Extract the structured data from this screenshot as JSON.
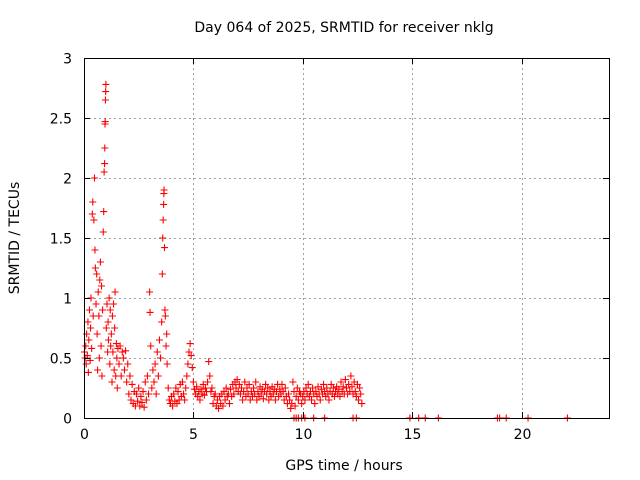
{
  "chart_data": {
    "type": "scatter",
    "title": "Day 064 of 2025, SRMTID for receiver nklg",
    "xlabel": "GPS time / hours",
    "ylabel": "SRMTID / TECUs",
    "xlim": [
      0,
      24
    ],
    "ylim": [
      0,
      3
    ],
    "grid": true,
    "marker": "+",
    "colors": {
      "series": "#ff0000",
      "axis": "#000000",
      "grid": "#a0a0a0"
    },
    "x_ticks": [
      {
        "value": 0,
        "label": "0"
      },
      {
        "value": 5,
        "label": "5"
      },
      {
        "value": 10,
        "label": "10"
      },
      {
        "value": 15,
        "label": "15"
      },
      {
        "value": 20,
        "label": "20"
      }
    ],
    "y_ticks": [
      {
        "value": 0,
        "label": "0"
      },
      {
        "value": 0.5,
        "label": "0.5"
      },
      {
        "value": 1,
        "label": "1"
      },
      {
        "value": 1.5,
        "label": "1.5"
      },
      {
        "value": 2,
        "label": "2"
      },
      {
        "value": 2.5,
        "label": "2.5"
      },
      {
        "value": 3,
        "label": "3"
      }
    ],
    "series": [
      {
        "name": "SRMTID",
        "points": [
          [
            0.02,
            0.55
          ],
          [
            0.05,
            0.5
          ],
          [
            0.08,
            0.6
          ],
          [
            0.1,
            0.45
          ],
          [
            0.12,
            0.7
          ],
          [
            0.15,
            0.52
          ],
          [
            0.18,
            0.8
          ],
          [
            0.2,
            0.38
          ],
          [
            0.22,
            0.65
          ],
          [
            0.25,
            0.9
          ],
          [
            0.28,
            0.48
          ],
          [
            0.3,
            0.75
          ],
          [
            0.32,
            1.0
          ],
          [
            0.35,
            0.58
          ],
          [
            0.38,
            1.7
          ],
          [
            0.4,
            1.8
          ],
          [
            0.42,
            0.85
          ],
          [
            0.45,
            1.65
          ],
          [
            0.48,
            2.0
          ],
          [
            0.5,
            1.4
          ],
          [
            0.52,
            1.25
          ],
          [
            0.55,
            0.95
          ],
          [
            0.58,
            1.2
          ],
          [
            0.6,
            0.7
          ],
          [
            0.62,
            0.4
          ],
          [
            0.65,
            1.05
          ],
          [
            0.68,
            0.85
          ],
          [
            0.7,
            0.5
          ],
          [
            0.72,
            1.15
          ],
          [
            0.75,
            1.3
          ],
          [
            0.78,
            0.6
          ],
          [
            0.8,
            1.1
          ],
          [
            0.82,
            0.35
          ],
          [
            0.85,
            0.9
          ],
          [
            0.88,
            1.55
          ],
          [
            0.9,
            1.72
          ],
          [
            0.92,
            2.05
          ],
          [
            0.94,
            2.12
          ],
          [
            0.95,
            2.25
          ],
          [
            0.96,
            2.45
          ],
          [
            0.97,
            2.47
          ],
          [
            0.98,
            2.65
          ],
          [
            0.99,
            2.72
          ],
          [
            1.0,
            2.78
          ],
          [
            1.02,
            0.75
          ],
          [
            1.05,
            0.95
          ],
          [
            1.08,
            0.55
          ],
          [
            1.1,
            0.8
          ],
          [
            1.12,
            0.65
          ],
          [
            1.15,
            1.0
          ],
          [
            1.18,
            0.45
          ],
          [
            1.2,
            0.9
          ],
          [
            1.22,
            0.6
          ],
          [
            1.25,
            0.7
          ],
          [
            1.28,
            0.3
          ],
          [
            1.3,
            0.85
          ],
          [
            1.32,
            0.55
          ],
          [
            1.35,
            0.95
          ],
          [
            1.38,
            0.4
          ],
          [
            1.4,
            0.75
          ],
          [
            1.42,
            1.05
          ],
          [
            1.45,
            0.35
          ],
          [
            1.48,
            0.62
          ],
          [
            1.5,
            0.5
          ],
          [
            1.52,
            0.25
          ],
          [
            1.55,
            0.58
          ],
          [
            1.6,
            0.45
          ],
          [
            1.65,
            0.6
          ],
          [
            1.7,
            0.35
          ],
          [
            1.75,
            0.55
          ],
          [
            1.8,
            0.5
          ],
          [
            1.85,
            0.4
          ],
          [
            1.9,
            0.56
          ],
          [
            1.95,
            0.3
          ],
          [
            2.0,
            0.45
          ],
          [
            2.05,
            0.2
          ],
          [
            2.1,
            0.35
          ],
          [
            2.15,
            0.15
          ],
          [
            2.2,
            0.28
          ],
          [
            2.25,
            0.12
          ],
          [
            2.3,
            0.22
          ],
          [
            2.35,
            0.1
          ],
          [
            2.4,
            0.2
          ],
          [
            2.45,
            0.14
          ],
          [
            2.5,
            0.25
          ],
          [
            2.55,
            0.1
          ],
          [
            2.6,
            0.18
          ],
          [
            2.65,
            0.13
          ],
          [
            2.7,
            0.22
          ],
          [
            2.75,
            0.09
          ],
          [
            2.8,
            0.3
          ],
          [
            2.85,
            0.15
          ],
          [
            2.9,
            0.35
          ],
          [
            2.95,
            0.2
          ],
          [
            3.0,
            1.05
          ],
          [
            3.02,
            0.88
          ],
          [
            3.05,
            0.6
          ],
          [
            3.1,
            0.25
          ],
          [
            3.15,
            0.4
          ],
          [
            3.2,
            0.3
          ],
          [
            3.25,
            0.45
          ],
          [
            3.3,
            0.2
          ],
          [
            3.35,
            0.55
          ],
          [
            3.4,
            0.35
          ],
          [
            3.45,
            0.65
          ],
          [
            3.5,
            0.5
          ],
          [
            3.55,
            0.8
          ],
          [
            3.58,
            1.2
          ],
          [
            3.6,
            1.5
          ],
          [
            3.62,
            1.65
          ],
          [
            3.64,
            1.78
          ],
          [
            3.65,
            1.87
          ],
          [
            3.66,
            1.9
          ],
          [
            3.68,
            1.42
          ],
          [
            3.7,
            0.9
          ],
          [
            3.72,
            0.85
          ],
          [
            3.75,
            0.6
          ],
          [
            3.78,
            0.7
          ],
          [
            3.8,
            0.45
          ],
          [
            3.85,
            0.25
          ],
          [
            3.9,
            0.15
          ],
          [
            3.95,
            0.12
          ],
          [
            4.0,
            0.18
          ],
          [
            4.05,
            0.1
          ],
          [
            4.1,
            0.2
          ],
          [
            4.15,
            0.14
          ],
          [
            4.2,
            0.25
          ],
          [
            4.25,
            0.12
          ],
          [
            4.3,
            0.22
          ],
          [
            4.35,
            0.15
          ],
          [
            4.4,
            0.28
          ],
          [
            4.45,
            0.18
          ],
          [
            4.5,
            0.3
          ],
          [
            4.55,
            0.2
          ],
          [
            4.6,
            0.15
          ],
          [
            4.65,
            0.25
          ],
          [
            4.7,
            0.35
          ],
          [
            4.75,
            0.45
          ],
          [
            4.8,
            0.55
          ],
          [
            4.85,
            0.62
          ],
          [
            4.9,
            0.52
          ],
          [
            4.95,
            0.42
          ],
          [
            5.0,
            0.3
          ],
          [
            5.05,
            0.24
          ],
          [
            5.1,
            0.2
          ],
          [
            5.15,
            0.26
          ],
          [
            5.2,
            0.18
          ],
          [
            5.25,
            0.22
          ],
          [
            5.3,
            0.15
          ],
          [
            5.35,
            0.24
          ],
          [
            5.4,
            0.2
          ],
          [
            5.45,
            0.28
          ],
          [
            5.5,
            0.19
          ],
          [
            5.55,
            0.25
          ],
          [
            5.6,
            0.22
          ],
          [
            5.65,
            0.3
          ],
          [
            5.7,
            0.47
          ],
          [
            5.75,
            0.35
          ],
          [
            5.8,
            0.22
          ],
          [
            5.85,
            0.25
          ],
          [
            5.9,
            0.12
          ],
          [
            5.95,
            0.18
          ],
          [
            6.0,
            0.2
          ],
          [
            6.05,
            0.1
          ],
          [
            6.1,
            0.15
          ],
          [
            6.15,
            0.08
          ],
          [
            6.2,
            0.18
          ],
          [
            6.25,
            0.12
          ],
          [
            6.3,
            0.2
          ],
          [
            6.35,
            0.1
          ],
          [
            6.4,
            0.22
          ],
          [
            6.45,
            0.15
          ],
          [
            6.5,
            0.25
          ],
          [
            6.55,
            0.18
          ],
          [
            6.6,
            0.2
          ],
          [
            6.65,
            0.12
          ],
          [
            6.7,
            0.24
          ],
          [
            6.75,
            0.18
          ],
          [
            6.8,
            0.28
          ],
          [
            6.85,
            0.2
          ],
          [
            6.9,
            0.3
          ],
          [
            6.95,
            0.25
          ],
          [
            7.0,
            0.32
          ],
          [
            7.05,
            0.22
          ],
          [
            7.1,
            0.28
          ],
          [
            7.15,
            0.2
          ],
          [
            7.2,
            0.25
          ],
          [
            7.25,
            0.15
          ],
          [
            7.3,
            0.22
          ],
          [
            7.35,
            0.3
          ],
          [
            7.4,
            0.18
          ],
          [
            7.45,
            0.25
          ],
          [
            7.5,
            0.2
          ],
          [
            7.55,
            0.28
          ],
          [
            7.6,
            0.15
          ],
          [
            7.65,
            0.22
          ],
          [
            7.7,
            0.18
          ],
          [
            7.75,
            0.25
          ],
          [
            7.8,
            0.2
          ],
          [
            7.85,
            0.3
          ],
          [
            7.9,
            0.15
          ],
          [
            7.95,
            0.22
          ],
          [
            8.0,
            0.18
          ],
          [
            8.05,
            0.26
          ],
          [
            8.1,
            0.2
          ],
          [
            8.15,
            0.24
          ],
          [
            8.2,
            0.16
          ],
          [
            8.25,
            0.22
          ],
          [
            8.3,
            0.28
          ],
          [
            8.35,
            0.2
          ],
          [
            8.4,
            0.25
          ],
          [
            8.45,
            0.15
          ],
          [
            8.5,
            0.22
          ],
          [
            8.55,
            0.18
          ],
          [
            8.6,
            0.26
          ],
          [
            8.65,
            0.2
          ],
          [
            8.7,
            0.24
          ],
          [
            8.75,
            0.15
          ],
          [
            8.8,
            0.22
          ],
          [
            8.85,
            0.28
          ],
          [
            8.9,
            0.18
          ],
          [
            8.95,
            0.24
          ],
          [
            9.0,
            0.2
          ],
          [
            9.05,
            0.28
          ],
          [
            9.1,
            0.22
          ],
          [
            9.15,
            0.15
          ],
          [
            9.2,
            0.25
          ],
          [
            9.25,
            0.18
          ],
          [
            9.3,
            0.12
          ],
          [
            9.35,
            0.2
          ],
          [
            9.4,
            0.15
          ],
          [
            9.45,
            0.08
          ],
          [
            9.5,
            0.12
          ],
          [
            9.55,
            0.3
          ],
          [
            9.6,
            0.22
          ],
          [
            9.65,
            0.1
          ],
          [
            9.7,
            0.18
          ],
          [
            9.75,
            0.25
          ],
          [
            9.8,
            0.15
          ],
          [
            9.85,
            0.22
          ],
          [
            9.9,
            0.2
          ],
          [
            9.95,
            0.12
          ],
          [
            10.0,
            0.18
          ],
          [
            10.05,
            0.22
          ],
          [
            10.1,
            0.15
          ],
          [
            10.15,
            0.25
          ],
          [
            10.2,
            0.2
          ],
          [
            10.25,
            0.28
          ],
          [
            10.3,
            0.18
          ],
          [
            10.35,
            0.22
          ],
          [
            10.4,
            0.15
          ],
          [
            10.45,
            0.25
          ],
          [
            10.5,
            0.2
          ],
          [
            10.55,
            0.12
          ],
          [
            10.6,
            0.22
          ],
          [
            10.65,
            0.18
          ],
          [
            10.7,
            0.26
          ],
          [
            10.75,
            0.2
          ],
          [
            10.8,
            0.15
          ],
          [
            10.85,
            0.24
          ],
          [
            10.9,
            0.2
          ],
          [
            10.95,
            0.28
          ],
          [
            11.0,
            0.22
          ],
          [
            11.05,
            0.18
          ],
          [
            11.1,
            0.25
          ],
          [
            11.15,
            0.2
          ],
          [
            11.2,
            0.15
          ],
          [
            11.25,
            0.22
          ],
          [
            11.3,
            0.28
          ],
          [
            11.35,
            0.2
          ],
          [
            11.4,
            0.25
          ],
          [
            11.45,
            0.18
          ],
          [
            11.5,
            0.22
          ],
          [
            11.55,
            0.26
          ],
          [
            11.6,
            0.2
          ],
          [
            11.65,
            0.24
          ],
          [
            11.7,
            0.18
          ],
          [
            11.75,
            0.3
          ],
          [
            11.8,
            0.22
          ],
          [
            11.85,
            0.26
          ],
          [
            11.9,
            0.2
          ],
          [
            11.95,
            0.32
          ],
          [
            12.0,
            0.25
          ],
          [
            12.05,
            0.2
          ],
          [
            12.1,
            0.28
          ],
          [
            12.15,
            0.22
          ],
          [
            12.2,
            0.35
          ],
          [
            12.25,
            0.26
          ],
          [
            12.3,
            0.2
          ],
          [
            12.35,
            0.3
          ],
          [
            12.4,
            0.22
          ],
          [
            12.45,
            0.18
          ],
          [
            12.5,
            0.28
          ],
          [
            12.55,
            0.15
          ],
          [
            12.6,
            0.25
          ],
          [
            12.65,
            0.2
          ],
          [
            12.7,
            0.12
          ],
          [
            9.6,
            0.0
          ],
          [
            9.7,
            0.0
          ],
          [
            9.8,
            0.0
          ],
          [
            9.95,
            0.0
          ],
          [
            10.1,
            0.0
          ],
          [
            10.5,
            0.0
          ],
          [
            11.0,
            0.0
          ],
          [
            12.3,
            0.0
          ],
          [
            12.45,
            0.0
          ],
          [
            14.9,
            0.0
          ],
          [
            15.3,
            0.0
          ],
          [
            15.6,
            0.0
          ],
          [
            16.2,
            0.0
          ],
          [
            18.9,
            0.0
          ],
          [
            19.0,
            0.0
          ],
          [
            19.3,
            0.0
          ],
          [
            20.3,
            0.0
          ],
          [
            22.1,
            0.0
          ]
        ]
      }
    ]
  }
}
